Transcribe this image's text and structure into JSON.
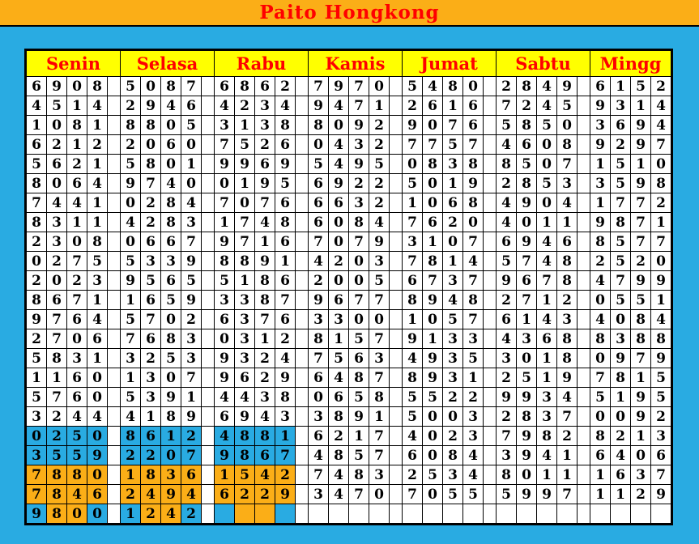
{
  "title": "Paito Hongkong",
  "colors": {
    "page_blue": "#29ABE2",
    "accent_orange": "#FBAE17",
    "header_yellow": "#FFFF00",
    "text_red": "#FF0000",
    "grid_black": "#000000",
    "cell_white": "#FFFFFF",
    "highlight_blue": "#29ABE2",
    "highlight_orange": "#FBAE17"
  },
  "table": {
    "days": [
      "Senin",
      "Selasa",
      "Rabu",
      "Kamis",
      "Jumat",
      "Sabtu",
      "Mingg"
    ],
    "rows": [
      [
        "6908",
        "5087",
        "6862",
        "7970",
        "5480",
        "2849",
        "6152"
      ],
      [
        "4514",
        "2946",
        "4234",
        "9471",
        "2616",
        "7245",
        "9314"
      ],
      [
        "1081",
        "8805",
        "3138",
        "8092",
        "9076",
        "5850",
        "3694"
      ],
      [
        "6212",
        "2060",
        "7526",
        "0432",
        "7757",
        "4608",
        "9297"
      ],
      [
        "5621",
        "5801",
        "9969",
        "5495",
        "0838",
        "8507",
        "1510"
      ],
      [
        "8064",
        "9740",
        "0195",
        "6922",
        "5019",
        "2853",
        "3598"
      ],
      [
        "7441",
        "0284",
        "7076",
        "6632",
        "1068",
        "4904",
        "1772"
      ],
      [
        "8311",
        "4283",
        "1748",
        "6084",
        "7620",
        "4011",
        "9871"
      ],
      [
        "2308",
        "0667",
        "9716",
        "7079",
        "3107",
        "6946",
        "8577"
      ],
      [
        "0275",
        "5339",
        "8891",
        "4203",
        "7814",
        "5748",
        "2520"
      ],
      [
        "2023",
        "9565",
        "5186",
        "2005",
        "6737",
        "9678",
        "4799"
      ],
      [
        "8671",
        "1659",
        "3387",
        "9677",
        "8948",
        "2712",
        "0551"
      ],
      [
        "9764",
        "5702",
        "6376",
        "3300",
        "1057",
        "6143",
        "4084"
      ],
      [
        "2706",
        "7683",
        "0312",
        "8157",
        "9133",
        "4368",
        "8388"
      ],
      [
        "5831",
        "3253",
        "9324",
        "7563",
        "4935",
        "3018",
        "0979"
      ],
      [
        "1160",
        "1307",
        "9629",
        "6487",
        "8931",
        "2519",
        "7815"
      ],
      [
        "5760",
        "5391",
        "4438",
        "0658",
        "5522",
        "9934",
        "5195"
      ],
      [
        "3244",
        "4189",
        "6943",
        "3891",
        "5003",
        "2837",
        "0092"
      ],
      [
        "0250",
        "8612",
        "4881",
        "6217",
        "4023",
        "7982",
        "8213"
      ],
      [
        "3559",
        "2207",
        "9867",
        "4857",
        "6084",
        "3941",
        "6406"
      ],
      [
        "7880",
        "1836",
        "1542",
        "7483",
        "2534",
        "8011",
        "1637"
      ],
      [
        "7846",
        "2494",
        "6229",
        "3470",
        "7055",
        "5997",
        "1129"
      ],
      [
        "9800",
        "1242",
        "",
        "",
        "",
        "",
        ""
      ]
    ],
    "highlights": {
      "18": [
        "bbbb",
        "bbbb",
        "bbbb",
        "",
        "",
        "",
        ""
      ],
      "19": [
        "bbbb",
        "bbbb",
        "bbbb",
        "",
        "",
        "",
        ""
      ],
      "20": [
        "oooo",
        "oooo",
        "oooo",
        "",
        "",
        "",
        ""
      ],
      "21": [
        "oooo",
        "oooo",
        "oooo",
        "",
        "",
        "",
        ""
      ],
      "22": [
        "boob",
        "boob",
        "boob",
        "",
        "",
        "",
        ""
      ]
    }
  }
}
